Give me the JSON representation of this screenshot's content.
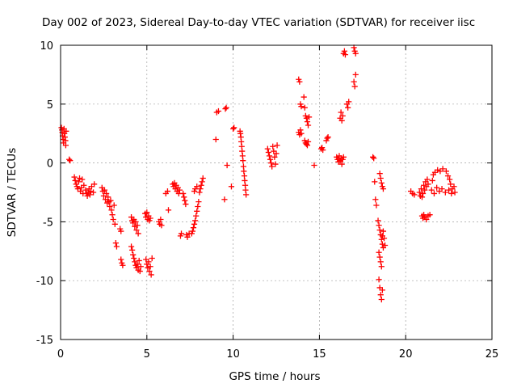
{
  "chart_data": {
    "type": "scatter",
    "title": "Day 002 of 2023, Sidereal Day-to-day VTEC variation (SDTVAR) for receiver iisc",
    "xlabel": "GPS time / hours",
    "ylabel": "SDTVAR / TECUs",
    "xlim": [
      0,
      25
    ],
    "ylim": [
      -15,
      10
    ],
    "x_ticks": [
      0,
      5,
      10,
      15,
      20,
      25
    ],
    "y_ticks": [
      -15,
      -10,
      -5,
      0,
      5,
      10
    ],
    "grid": true,
    "marker": "+",
    "series": [
      {
        "name": "SDTVAR",
        "color": "#ff0000",
        "points": [
          [
            0.05,
            3.0
          ],
          [
            0.08,
            2.8
          ],
          [
            0.1,
            2.6
          ],
          [
            0.12,
            2.3
          ],
          [
            0.15,
            2.0
          ],
          [
            0.17,
            1.7
          ],
          [
            0.2,
            2.9
          ],
          [
            0.22,
            2.5
          ],
          [
            0.25,
            2.2
          ],
          [
            0.28,
            1.9
          ],
          [
            0.3,
            1.5
          ],
          [
            0.32,
            2.7
          ],
          [
            0.5,
            0.3
          ],
          [
            0.55,
            0.2
          ],
          [
            0.8,
            -1.2
          ],
          [
            0.85,
            -1.5
          ],
          [
            0.9,
            -1.8
          ],
          [
            0.95,
            -2.0
          ],
          [
            1.0,
            -2.2
          ],
          [
            1.05,
            -1.6
          ],
          [
            1.1,
            -1.3
          ],
          [
            1.15,
            -2.4
          ],
          [
            1.2,
            -2.1
          ],
          [
            1.25,
            -1.4
          ],
          [
            1.3,
            -2.6
          ],
          [
            1.35,
            -1.9
          ],
          [
            1.45,
            -2.3
          ],
          [
            1.5,
            -2.6
          ],
          [
            1.55,
            -2.8
          ],
          [
            1.6,
            -2.5
          ],
          [
            1.65,
            -2.2
          ],
          [
            1.7,
            -2.7
          ],
          [
            1.75,
            -2.4
          ],
          [
            1.8,
            -2.0
          ],
          [
            1.9,
            -2.5
          ],
          [
            1.95,
            -1.8
          ],
          [
            2.4,
            -2.1
          ],
          [
            2.45,
            -2.4
          ],
          [
            2.5,
            -2.8
          ],
          [
            2.55,
            -2.3
          ],
          [
            2.6,
            -3.1
          ],
          [
            2.65,
            -2.6
          ],
          [
            2.7,
            -3.4
          ],
          [
            2.75,
            -2.9
          ],
          [
            2.8,
            -3.3
          ],
          [
            2.85,
            -3.7
          ],
          [
            2.9,
            -3.2
          ],
          [
            2.95,
            -4.0
          ],
          [
            3.0,
            -4.4
          ],
          [
            3.05,
            -4.8
          ],
          [
            3.1,
            -3.6
          ],
          [
            3.15,
            -5.2
          ],
          [
            3.2,
            -6.8
          ],
          [
            3.25,
            -7.1
          ],
          [
            3.45,
            -5.6
          ],
          [
            3.5,
            -5.8
          ],
          [
            3.5,
            -8.2
          ],
          [
            3.55,
            -8.5
          ],
          [
            3.6,
            -8.7
          ],
          [
            4.1,
            -4.6
          ],
          [
            4.15,
            -4.9
          ],
          [
            4.2,
            -5.1
          ],
          [
            4.25,
            -4.8
          ],
          [
            4.3,
            -5.4
          ],
          [
            4.35,
            -5.0
          ],
          [
            4.4,
            -5.7
          ],
          [
            4.45,
            -5.3
          ],
          [
            4.5,
            -6.0
          ],
          [
            4.1,
            -7.1
          ],
          [
            4.15,
            -7.4
          ],
          [
            4.2,
            -7.8
          ],
          [
            4.25,
            -8.1
          ],
          [
            4.3,
            -8.4
          ],
          [
            4.35,
            -8.7
          ],
          [
            4.4,
            -8.9
          ],
          [
            4.45,
            -8.6
          ],
          [
            4.5,
            -9.1
          ],
          [
            4.55,
            -8.3
          ],
          [
            4.6,
            -9.2
          ],
          [
            4.65,
            -8.8
          ],
          [
            4.9,
            -4.3
          ],
          [
            4.95,
            -4.6
          ],
          [
            5.0,
            -4.2
          ],
          [
            5.05,
            -4.8
          ],
          [
            5.1,
            -4.5
          ],
          [
            5.15,
            -4.9
          ],
          [
            5.2,
            -4.7
          ],
          [
            4.95,
            -8.2
          ],
          [
            5.0,
            -8.6
          ],
          [
            5.05,
            -8.9
          ],
          [
            5.1,
            -8.4
          ],
          [
            5.15,
            -9.2
          ],
          [
            5.2,
            -8.8
          ],
          [
            5.25,
            -9.5
          ],
          [
            5.3,
            -8.1
          ],
          [
            5.7,
            -5.0
          ],
          [
            5.75,
            -5.2
          ],
          [
            5.8,
            -4.8
          ],
          [
            5.85,
            -5.3
          ],
          [
            6.1,
            -2.6
          ],
          [
            6.2,
            -2.4
          ],
          [
            6.25,
            -4.0
          ],
          [
            6.5,
            -1.8
          ],
          [
            6.55,
            -2.0
          ],
          [
            6.6,
            -1.7
          ],
          [
            6.65,
            -2.2
          ],
          [
            6.7,
            -1.9
          ],
          [
            6.75,
            -2.4
          ],
          [
            6.8,
            -2.1
          ],
          [
            6.85,
            -2.6
          ],
          [
            6.9,
            -2.3
          ],
          [
            6.95,
            -6.2
          ],
          [
            7.0,
            -6.0
          ],
          [
            7.1,
            -2.6
          ],
          [
            7.15,
            -2.9
          ],
          [
            7.2,
            -3.2
          ],
          [
            7.25,
            -3.5
          ],
          [
            7.3,
            -6.1
          ],
          [
            7.35,
            -6.3
          ],
          [
            7.45,
            -6.0
          ],
          [
            7.6,
            -6.0
          ],
          [
            7.65,
            -5.8
          ],
          [
            7.7,
            -5.5
          ],
          [
            7.75,
            -5.2
          ],
          [
            7.8,
            -4.9
          ],
          [
            7.85,
            -4.5
          ],
          [
            7.9,
            -4.1
          ],
          [
            7.95,
            -3.7
          ],
          [
            8.0,
            -3.3
          ],
          [
            8.05,
            -2.5
          ],
          [
            8.1,
            -2.2
          ],
          [
            8.15,
            -1.9
          ],
          [
            8.2,
            -1.6
          ],
          [
            8.25,
            -1.3
          ],
          [
            7.75,
            -2.4
          ],
          [
            7.8,
            -2.2
          ],
          [
            7.9,
            -2.0
          ],
          [
            9.0,
            2.0
          ],
          [
            9.05,
            4.3
          ],
          [
            9.15,
            4.4
          ],
          [
            9.5,
            -3.1
          ],
          [
            9.55,
            4.6
          ],
          [
            9.6,
            4.7
          ],
          [
            9.65,
            -0.2
          ],
          [
            9.9,
            -2.0
          ],
          [
            10.0,
            2.9
          ],
          [
            10.05,
            3.0
          ],
          [
            10.4,
            2.7
          ],
          [
            10.42,
            2.5
          ],
          [
            10.45,
            2.2
          ],
          [
            10.47,
            1.8
          ],
          [
            10.5,
            1.4
          ],
          [
            10.52,
            1.0
          ],
          [
            10.55,
            0.6
          ],
          [
            10.57,
            0.2
          ],
          [
            10.6,
            -0.3
          ],
          [
            10.62,
            -0.7
          ],
          [
            10.65,
            -1.1
          ],
          [
            10.67,
            -1.5
          ],
          [
            10.7,
            -1.9
          ],
          [
            10.72,
            -2.3
          ],
          [
            10.75,
            -2.7
          ],
          [
            12.0,
            1.2
          ],
          [
            12.05,
            0.9
          ],
          [
            12.1,
            0.6
          ],
          [
            12.15,
            0.3
          ],
          [
            12.2,
            0.0
          ],
          [
            12.25,
            -0.3
          ],
          [
            12.3,
            1.4
          ],
          [
            12.35,
            1.0
          ],
          [
            12.4,
            0.5
          ],
          [
            12.45,
            -0.1
          ],
          [
            12.5,
            0.8
          ],
          [
            12.55,
            1.5
          ],
          [
            13.8,
            7.1
          ],
          [
            13.85,
            6.9
          ],
          [
            13.9,
            5.0
          ],
          [
            13.95,
            4.8
          ],
          [
            13.8,
            2.6
          ],
          [
            13.85,
            2.4
          ],
          [
            13.9,
            2.8
          ],
          [
            13.95,
            2.5
          ],
          [
            14.1,
            5.6
          ],
          [
            14.15,
            4.7
          ],
          [
            14.2,
            4.0
          ],
          [
            14.25,
            3.8
          ],
          [
            14.3,
            3.5
          ],
          [
            14.35,
            3.2
          ],
          [
            14.4,
            3.9
          ],
          [
            14.15,
            1.9
          ],
          [
            14.2,
            1.7
          ],
          [
            14.25,
            1.6
          ],
          [
            14.3,
            1.5
          ],
          [
            14.35,
            1.8
          ],
          [
            14.7,
            -0.2
          ],
          [
            15.1,
            1.2
          ],
          [
            15.15,
            1.3
          ],
          [
            15.2,
            1.1
          ],
          [
            15.4,
            1.9
          ],
          [
            15.45,
            2.1
          ],
          [
            15.5,
            2.2
          ],
          [
            16.0,
            0.5
          ],
          [
            16.05,
            0.3
          ],
          [
            16.1,
            0.1
          ],
          [
            16.15,
            0.6
          ],
          [
            16.2,
            0.2
          ],
          [
            16.25,
            0.4
          ],
          [
            16.3,
            -0.1
          ],
          [
            16.35,
            0.3
          ],
          [
            16.4,
            0.5
          ],
          [
            16.2,
            3.8
          ],
          [
            16.25,
            4.3
          ],
          [
            16.3,
            3.6
          ],
          [
            16.35,
            4.0
          ],
          [
            16.4,
            9.3
          ],
          [
            16.45,
            9.5
          ],
          [
            16.5,
            9.2
          ],
          [
            16.6,
            5.0
          ],
          [
            16.65,
            4.7
          ],
          [
            16.7,
            5.2
          ],
          [
            17.0,
            9.8
          ],
          [
            17.05,
            9.5
          ],
          [
            17.1,
            9.3
          ],
          [
            17.1,
            7.5
          ],
          [
            17.0,
            6.9
          ],
          [
            17.05,
            6.5
          ],
          [
            18.1,
            0.5
          ],
          [
            18.15,
            0.4
          ],
          [
            18.2,
            -1.6
          ],
          [
            18.25,
            -3.1
          ],
          [
            18.3,
            -3.6
          ],
          [
            18.5,
            -0.9
          ],
          [
            18.55,
            -1.3
          ],
          [
            18.6,
            -1.7
          ],
          [
            18.65,
            -2.0
          ],
          [
            18.7,
            -2.2
          ],
          [
            18.4,
            -4.9
          ],
          [
            18.45,
            -5.3
          ],
          [
            18.5,
            -5.7
          ],
          [
            18.55,
            -6.1
          ],
          [
            18.6,
            -6.5
          ],
          [
            18.65,
            -6.9
          ],
          [
            18.7,
            -7.2
          ],
          [
            18.45,
            -7.6
          ],
          [
            18.5,
            -8.0
          ],
          [
            18.55,
            -8.4
          ],
          [
            18.6,
            -8.8
          ],
          [
            18.65,
            -6.2
          ],
          [
            18.7,
            -5.8
          ],
          [
            18.75,
            -6.4
          ],
          [
            18.8,
            -7.0
          ],
          [
            18.45,
            -9.9
          ],
          [
            18.5,
            -10.6
          ],
          [
            18.55,
            -11.2
          ],
          [
            18.6,
            -11.6
          ],
          [
            18.65,
            -10.8
          ],
          [
            20.3,
            -2.4
          ],
          [
            20.4,
            -2.6
          ],
          [
            20.5,
            -2.7
          ],
          [
            20.8,
            -2.5
          ],
          [
            20.85,
            -2.8
          ],
          [
            20.9,
            -2.2
          ],
          [
            20.95,
            -2.9
          ],
          [
            21.0,
            -2.6
          ],
          [
            21.05,
            -1.9
          ],
          [
            21.1,
            -2.3
          ],
          [
            21.15,
            -1.6
          ],
          [
            21.2,
            -2.0
          ],
          [
            21.25,
            -1.4
          ],
          [
            21.3,
            -1.8
          ],
          [
            20.95,
            -4.5
          ],
          [
            21.0,
            -4.7
          ],
          [
            21.05,
            -4.4
          ],
          [
            21.1,
            -4.6
          ],
          [
            21.2,
            -4.8
          ],
          [
            21.3,
            -4.5
          ],
          [
            21.4,
            -4.4
          ],
          [
            21.5,
            -2.3
          ],
          [
            21.55,
            -1.5
          ],
          [
            21.6,
            -1.0
          ],
          [
            21.65,
            -2.6
          ],
          [
            21.7,
            -0.8
          ],
          [
            21.8,
            -2.1
          ],
          [
            21.85,
            -0.6
          ],
          [
            21.95,
            -2.4
          ],
          [
            22.0,
            -0.7
          ],
          [
            22.1,
            -2.2
          ],
          [
            22.15,
            -0.5
          ],
          [
            22.3,
            -2.5
          ],
          [
            22.35,
            -0.7
          ],
          [
            22.45,
            -1.1
          ],
          [
            22.5,
            -2.3
          ],
          [
            22.55,
            -1.4
          ],
          [
            22.6,
            -1.8
          ],
          [
            22.65,
            -2.6
          ],
          [
            22.7,
            -2.2
          ],
          [
            22.8,
            -2.0
          ],
          [
            22.85,
            -2.5
          ]
        ]
      }
    ]
  }
}
